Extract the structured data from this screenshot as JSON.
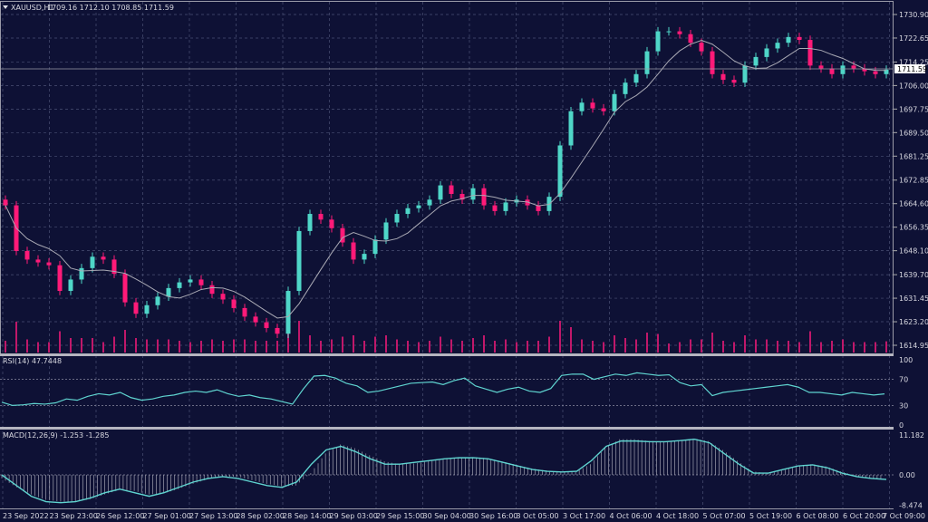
{
  "header": {
    "symbol": "XAUUSD,H1",
    "ohlc": "1709.16 1712.10 1708.85 1711.59"
  },
  "current_price_label": "1711.59",
  "colors": {
    "background": "#0e1135",
    "grid": "#4a5075",
    "up": "#4fd6c8",
    "down": "#ff1a78",
    "ma": "#a9a9b4",
    "rsi": "#5fd4d0",
    "macd_line": "#5fd4d0",
    "macd_hist": "#b8b8c4",
    "volume": "#c0186a"
  },
  "chart_data": [
    {
      "type": "candlestick",
      "symbol": "XAUUSD",
      "timeframe": "H1",
      "ylim": [
        1614.95,
        1730.9
      ],
      "y_ticks": [
        "1730.90",
        "1722.65",
        "1714.25",
        "1706.00",
        "1697.75",
        "1689.50",
        "1681.25",
        "1672.85",
        "1664.60",
        "1656.35",
        "1648.10",
        "1639.70",
        "1631.45",
        "1623.20",
        "1614.95"
      ],
      "x_ticks": [
        "23 Sep 2022",
        "23 Sep 23:00",
        "26 Sep 12:00",
        "27 Sep 01:00",
        "27 Sep 13:00",
        "28 Sep 02:00",
        "28 Sep 14:00",
        "29 Sep 03:00",
        "29 Sep 15:00",
        "30 Sep 04:00",
        "30 Sep 16:00",
        "3 Oct 05:00",
        "3 Oct 17:00",
        "4 Oct 06:00",
        "4 Oct 18:00",
        "5 Oct 07:00",
        "5 Oct 19:00",
        "6 Oct 08:00",
        "6 Oct 20:00",
        "7 Oct 09:00"
      ],
      "grid": true,
      "last_close": 1711.59,
      "closes": [
        1664,
        1648,
        1645,
        1644,
        1643,
        1634,
        1638,
        1642,
        1646,
        1645,
        1640,
        1630,
        1626,
        1629,
        1632,
        1635,
        1637,
        1638,
        1636,
        1633,
        1631,
        1628,
        1625,
        1623,
        1621,
        1619,
        1634,
        1655,
        1661,
        1659,
        1656,
        1651,
        1645,
        1647,
        1652,
        1658,
        1661,
        1663,
        1664,
        1666,
        1671,
        1668,
        1666,
        1670,
        1664,
        1662,
        1665,
        1666,
        1664,
        1662,
        1667,
        1685,
        1697,
        1700,
        1698,
        1697,
        1703,
        1707,
        1710,
        1718,
        1725,
        1725,
        1724,
        1721,
        1718,
        1710,
        1708,
        1707,
        1713,
        1716,
        1719,
        1721,
        1723,
        1722,
        1713,
        1712,
        1710,
        1713,
        1712,
        1711,
        1710,
        1711.59
      ]
    },
    {
      "type": "line",
      "title": "RSI(14) 47.7448",
      "ylim": [
        0,
        100
      ],
      "y_ticks": [
        "100",
        "70",
        "30",
        "0"
      ],
      "values": [
        35,
        30,
        31,
        33,
        32,
        34,
        40,
        38,
        44,
        48,
        46,
        50,
        42,
        38,
        40,
        44,
        46,
        50,
        52,
        50,
        54,
        48,
        44,
        46,
        42,
        40,
        36,
        32,
        55,
        75,
        76,
        72,
        64,
        60,
        50,
        52,
        56,
        60,
        64,
        65,
        66,
        62,
        68,
        72,
        60,
        55,
        50,
        55,
        58,
        52,
        50,
        56,
        76,
        78,
        78,
        70,
        74,
        78,
        76,
        80,
        78,
        76,
        77,
        65,
        60,
        62,
        45,
        50,
        52,
        54,
        56,
        58,
        60,
        62,
        58,
        50,
        50,
        48,
        46,
        50,
        48,
        46,
        47.74
      ]
    },
    {
      "type": "bar+line",
      "title": "MACD(12,26,9) -1.253 -1.285",
      "ylim": [
        -8.474,
        11.182
      ],
      "y_ticks": [
        "11.182",
        "0.00",
        "-8.474"
      ],
      "histogram": [
        -1,
        -3.5,
        -5.5,
        -7,
        -7.5,
        -7.5,
        -6.8,
        -5.5,
        -4.2,
        -4.5,
        -5.5,
        -5.2,
        -4,
        -2.5,
        -1.2,
        -0.5,
        -0.5,
        -1.5,
        -2.5,
        -3.2,
        -3,
        0.5,
        6,
        8.5,
        7.5,
        5.5,
        3.8,
        3,
        3.2,
        3.8,
        4.3,
        4.8,
        5,
        4.7,
        3.8,
        2.8,
        1.8,
        1.2,
        0.8,
        0.8,
        3,
        7.5,
        10,
        10,
        9.5,
        9.4,
        9.6,
        10.2,
        9.5,
        7,
        4,
        1,
        0.5,
        1.2,
        2.2,
        3,
        2.4,
        1,
        -0.2,
        -1,
        -1.25
      ],
      "signal": [
        0,
        -3,
        -6,
        -7.5,
        -7.8,
        -7.5,
        -6.5,
        -5,
        -4,
        -5,
        -6,
        -5,
        -3.5,
        -2,
        -1,
        -0.5,
        -1,
        -2,
        -3,
        -3.5,
        -2,
        3,
        7,
        8,
        6.5,
        4.5,
        3,
        3,
        3.5,
        4,
        4.5,
        4.8,
        4.8,
        4.5,
        3.5,
        2.5,
        1.5,
        1,
        0.8,
        1,
        4,
        8,
        9.5,
        9.5,
        9.3,
        9.3,
        9.6,
        10,
        9,
        6,
        3,
        0.5,
        0.5,
        1.5,
        2.5,
        2.8,
        2,
        0.5,
        -0.5,
        -1,
        -1.285
      ]
    }
  ]
}
